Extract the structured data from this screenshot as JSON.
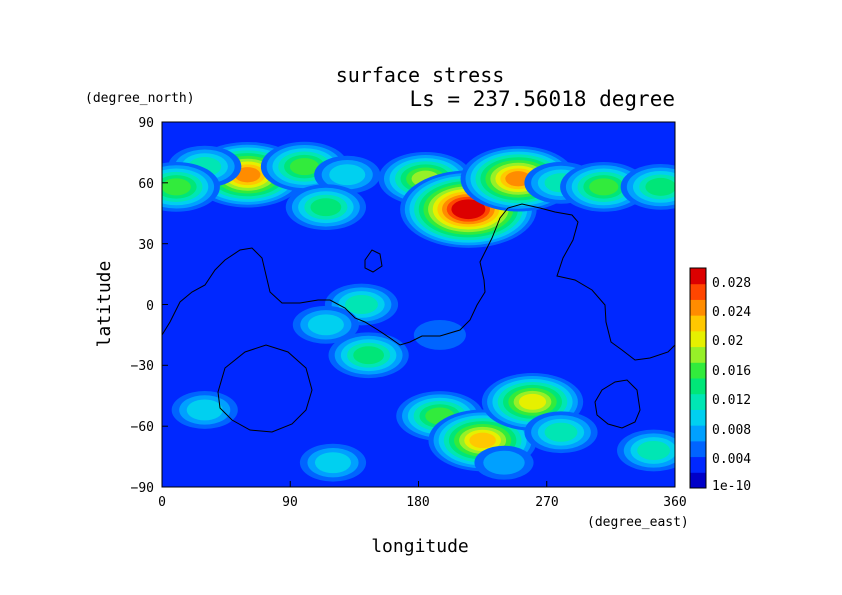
{
  "chart_data": {
    "type": "heatmap",
    "title": "surface stress",
    "subtitle": "Ls = 237.56018 degree",
    "xlabel": "longitude",
    "ylabel": "latitude",
    "x_unit": "(degree_east)",
    "y_unit": "(degree_north)",
    "xlim": [
      0,
      360
    ],
    "ylim": [
      -90,
      90
    ],
    "x_ticks": [
      "0",
      "90",
      "180",
      "270",
      "360"
    ],
    "y_ticks": [
      "90",
      "60",
      "30",
      "0",
      "−30",
      "−60",
      "−90"
    ],
    "colorbar": {
      "min": 0,
      "max": 0.03,
      "labels": [
        "0.028",
        "0.024",
        "0.02",
        "0.016",
        "0.012",
        "0.008",
        "0.004",
        "1e-10"
      ],
      "colors": [
        "#0000c8",
        "#0028ff",
        "#0064ff",
        "#00a0ff",
        "#00d0f0",
        "#00e6b4",
        "#00e678",
        "#32eb3c",
        "#96f028",
        "#e6f000",
        "#ffc800",
        "#ff8c00",
        "#ff4600",
        "#dc0000"
      ]
    },
    "background_level": 0.003,
    "features": [
      {
        "lon": 60,
        "lat": 64,
        "value": 0.025
      },
      {
        "lon": 30,
        "lat": 68,
        "value": 0.012
      },
      {
        "lon": 100,
        "lat": 68,
        "value": 0.015
      },
      {
        "lon": 130,
        "lat": 64,
        "value": 0.009
      },
      {
        "lon": 10,
        "lat": 58,
        "value": 0.016
      },
      {
        "lon": 185,
        "lat": 62,
        "value": 0.018
      },
      {
        "lon": 215,
        "lat": 47,
        "value": 0.03
      },
      {
        "lon": 250,
        "lat": 62,
        "value": 0.024
      },
      {
        "lon": 280,
        "lat": 60,
        "value": 0.012
      },
      {
        "lon": 310,
        "lat": 58,
        "value": 0.017
      },
      {
        "lon": 350,
        "lat": 58,
        "value": 0.014
      },
      {
        "lon": 115,
        "lat": 48,
        "value": 0.013
      },
      {
        "lon": 140,
        "lat": 0,
        "value": 0.011
      },
      {
        "lon": 115,
        "lat": -10,
        "value": 0.009
      },
      {
        "lon": 145,
        "lat": -25,
        "value": 0.013
      },
      {
        "lon": 195,
        "lat": -15,
        "value": 0.006
      },
      {
        "lon": 30,
        "lat": -52,
        "value": 0.009
      },
      {
        "lon": 195,
        "lat": -55,
        "value": 0.016
      },
      {
        "lon": 225,
        "lat": -67,
        "value": 0.022
      },
      {
        "lon": 260,
        "lat": -48,
        "value": 0.02
      },
      {
        "lon": 280,
        "lat": -63,
        "value": 0.011
      },
      {
        "lon": 345,
        "lat": -72,
        "value": 0.012
      },
      {
        "lon": 120,
        "lat": -78,
        "value": 0.009
      },
      {
        "lon": 240,
        "lat": -78,
        "value": 0.008
      }
    ]
  }
}
